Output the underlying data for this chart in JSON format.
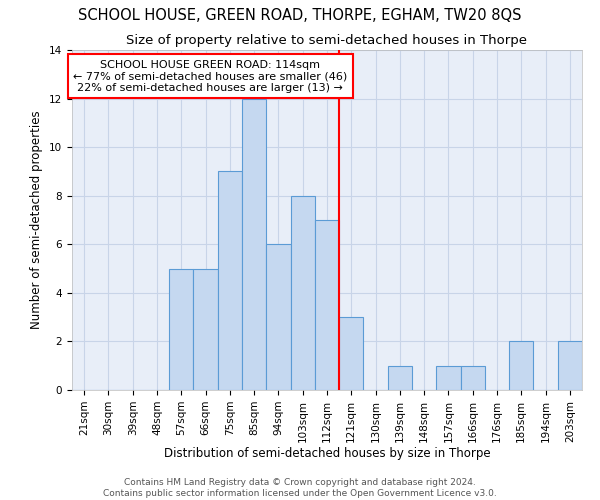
{
  "title": "SCHOOL HOUSE, GREEN ROAD, THORPE, EGHAM, TW20 8QS",
  "subtitle": "Size of property relative to semi-detached houses in Thorpe",
  "xlabel": "Distribution of semi-detached houses by size in Thorpe",
  "ylabel": "Number of semi-detached properties",
  "categories": [
    "21sqm",
    "30sqm",
    "39sqm",
    "48sqm",
    "57sqm",
    "66sqm",
    "75sqm",
    "85sqm",
    "94sqm",
    "103sqm",
    "112sqm",
    "121sqm",
    "130sqm",
    "139sqm",
    "148sqm",
    "157sqm",
    "166sqm",
    "176sqm",
    "185sqm",
    "194sqm",
    "203sqm"
  ],
  "values": [
    0,
    0,
    0,
    0,
    5,
    5,
    9,
    12,
    6,
    8,
    7,
    3,
    0,
    1,
    0,
    1,
    1,
    0,
    2,
    0,
    2
  ],
  "bar_color": "#c5d8f0",
  "bar_edge_color": "#5b9bd5",
  "highlight_line_color": "red",
  "ylim": [
    0,
    14
  ],
  "yticks": [
    0,
    2,
    4,
    6,
    8,
    10,
    12,
    14
  ],
  "annotation_title": "SCHOOL HOUSE GREEN ROAD: 114sqm",
  "annotation_line1": "← 77% of semi-detached houses are smaller (46)",
  "annotation_line2": "22% of semi-detached houses are larger (13) →",
  "annotation_box_color": "red",
  "footer1": "Contains HM Land Registry data © Crown copyright and database right 2024.",
  "footer2": "Contains public sector information licensed under the Open Government Licence v3.0.",
  "background_color": "#ffffff",
  "plot_bg_color": "#e8eef8",
  "grid_color": "#c8d4e8",
  "title_fontsize": 10.5,
  "subtitle_fontsize": 9.5,
  "axis_label_fontsize": 8.5,
  "tick_fontsize": 7.5,
  "annotation_fontsize": 8,
  "footer_fontsize": 6.5
}
